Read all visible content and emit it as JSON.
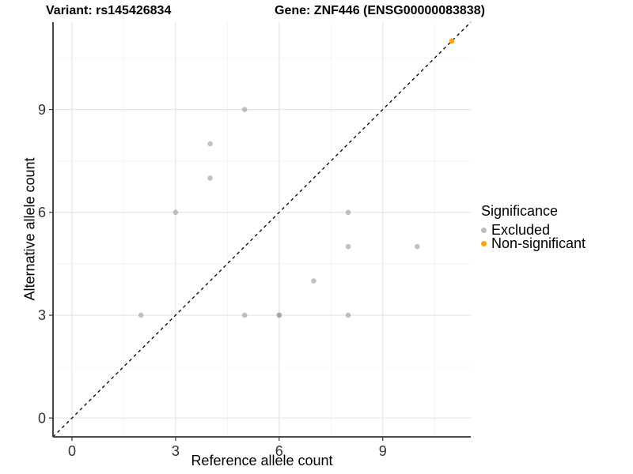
{
  "header": {
    "variant_title": "Variant: rs145426834",
    "gene_title": "Gene: ZNF446 (ENSG00000083838)"
  },
  "chart_data": {
    "type": "scatter",
    "xlabel": "Reference allele count",
    "ylabel": "Alternative allele count",
    "xlim": [
      -0.55,
      11.55
    ],
    "ylim": [
      -0.55,
      11.55
    ],
    "x_ticks": [
      0,
      3,
      6,
      9
    ],
    "y_ticks": [
      0,
      3,
      6,
      9
    ],
    "x_minor_ticks": [
      1.5,
      4.5,
      7.5,
      10.5
    ],
    "y_minor_ticks": [
      1.5,
      4.5,
      7.5,
      10.5
    ],
    "grid": true,
    "identity_line": {
      "slope": 1,
      "intercept": 0,
      "style": "dashed",
      "color": "#000000"
    },
    "legend": {
      "title": "Significance",
      "position": "right"
    },
    "series": [
      {
        "name": "Excluded",
        "color": "#999999",
        "legend_color": "#BEBEBE",
        "opacity": 0.6,
        "points": [
          [
            2,
            3
          ],
          [
            3,
            6
          ],
          [
            4,
            7
          ],
          [
            4,
            8
          ],
          [
            5,
            3
          ],
          [
            5,
            9
          ],
          [
            6,
            3
          ],
          [
            6,
            3
          ],
          [
            7,
            4
          ],
          [
            8,
            3
          ],
          [
            8,
            5
          ],
          [
            8,
            6
          ],
          [
            10,
            5
          ]
        ]
      },
      {
        "name": "Non-significant",
        "color": "#FFA500",
        "legend_color": "#FFA500",
        "opacity": 1,
        "points": [
          [
            11,
            11
          ]
        ]
      }
    ],
    "style": {
      "grid_major_color": "#E3E3E3",
      "grid_minor_color": "#F0F0F0",
      "axis_line_color": "#333333",
      "tick_label_color": "#333333",
      "point_radius": 3.3
    }
  }
}
